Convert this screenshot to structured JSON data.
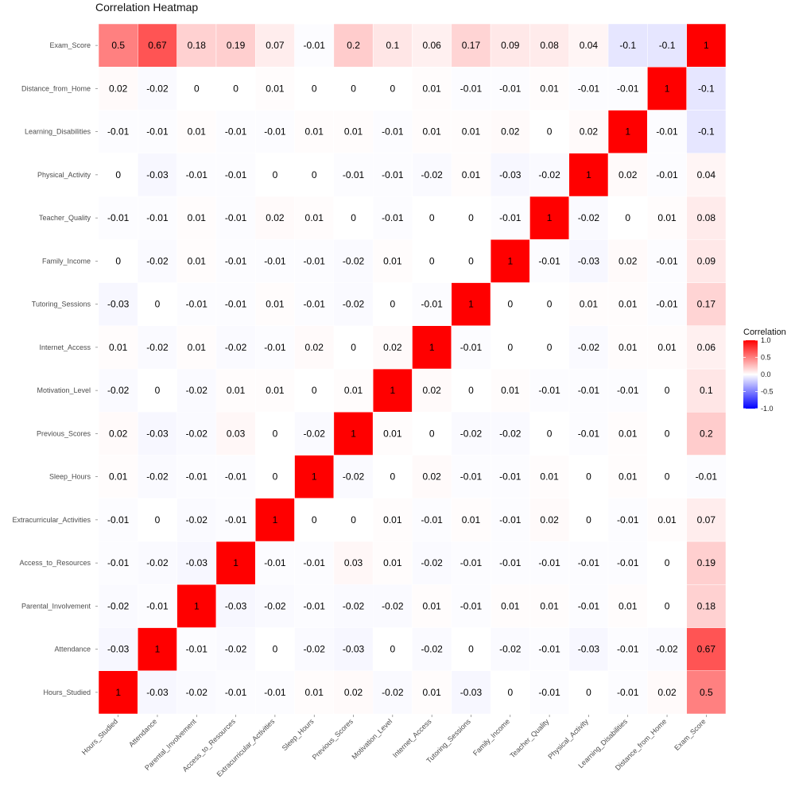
{
  "chart_data": {
    "type": "heatmap",
    "title": "Correlation Heatmap",
    "xlabel": "",
    "ylabel": "",
    "variables": [
      "Hours_Studied",
      "Attendance",
      "Parental_Involvement",
      "Access_to_Resources",
      "Extracurricular_Activities",
      "Sleep_Hours",
      "Previous_Scores",
      "Motivation_Level",
      "Internet_Access",
      "Tutoring_Sessions",
      "Family_Income",
      "Teacher_Quality",
      "Physical_Activity",
      "Learning_Disabilities",
      "Distance_from_Home",
      "Exam_Score"
    ],
    "matrix": [
      [
        1,
        -0.03,
        -0.02,
        -0.01,
        -0.01,
        0.01,
        0.02,
        -0.02,
        0.01,
        -0.03,
        0,
        -0.01,
        0,
        -0.01,
        0.02,
        0.5
      ],
      [
        -0.03,
        1,
        -0.01,
        -0.02,
        0,
        -0.02,
        -0.03,
        0,
        -0.02,
        0,
        -0.02,
        -0.01,
        -0.03,
        -0.01,
        -0.02,
        0.67
      ],
      [
        -0.02,
        -0.01,
        1,
        -0.03,
        -0.02,
        -0.01,
        -0.02,
        -0.02,
        0.01,
        -0.01,
        0.01,
        0.01,
        -0.01,
        0.01,
        0,
        0.18
      ],
      [
        -0.01,
        -0.02,
        -0.03,
        1,
        -0.01,
        -0.01,
        0.03,
        0.01,
        -0.02,
        -0.01,
        -0.01,
        -0.01,
        -0.01,
        -0.01,
        0,
        0.19
      ],
      [
        -0.01,
        0,
        -0.02,
        -0.01,
        1,
        0,
        0,
        0.01,
        -0.01,
        0.01,
        -0.01,
        0.02,
        0,
        -0.01,
        0.01,
        0.07
      ],
      [
        0.01,
        -0.02,
        -0.01,
        -0.01,
        0,
        1,
        -0.02,
        0,
        0.02,
        -0.01,
        -0.01,
        0.01,
        0,
        0.01,
        0,
        -0.01
      ],
      [
        0.02,
        -0.03,
        -0.02,
        0.03,
        0,
        -0.02,
        1,
        0.01,
        0,
        -0.02,
        -0.02,
        0,
        -0.01,
        0.01,
        0,
        0.2
      ],
      [
        -0.02,
        0,
        -0.02,
        0.01,
        0.01,
        0,
        0.01,
        1,
        0.02,
        0,
        0.01,
        -0.01,
        -0.01,
        -0.01,
        0,
        0.1
      ],
      [
        0.01,
        -0.02,
        0.01,
        -0.02,
        -0.01,
        0.02,
        0,
        0.02,
        1,
        -0.01,
        0,
        0,
        -0.02,
        0.01,
        0.01,
        0.06
      ],
      [
        -0.03,
        0,
        -0.01,
        -0.01,
        0.01,
        -0.01,
        -0.02,
        0,
        -0.01,
        1,
        0,
        0,
        0.01,
        0.01,
        -0.01,
        0.17
      ],
      [
        0,
        -0.02,
        0.01,
        -0.01,
        -0.01,
        -0.01,
        -0.02,
        0.01,
        0,
        0,
        1,
        -0.01,
        -0.03,
        0.02,
        -0.01,
        0.09
      ],
      [
        -0.01,
        -0.01,
        0.01,
        -0.01,
        0.02,
        0.01,
        0,
        -0.01,
        0,
        0,
        -0.01,
        1,
        -0.02,
        0,
        0.01,
        0.08
      ],
      [
        0,
        -0.03,
        -0.01,
        -0.01,
        0,
        0,
        -0.01,
        -0.01,
        -0.02,
        0.01,
        -0.03,
        -0.02,
        1,
        0.02,
        -0.01,
        0.04
      ],
      [
        -0.01,
        -0.01,
        0.01,
        -0.01,
        -0.01,
        0.01,
        0.01,
        -0.01,
        0.01,
        0.01,
        0.02,
        0,
        0.02,
        1,
        -0.01,
        -0.1
      ],
      [
        0.02,
        -0.02,
        0,
        0,
        0.01,
        0,
        0,
        0,
        0.01,
        -0.01,
        -0.01,
        0.01,
        -0.01,
        -0.01,
        1,
        -0.1
      ],
      [
        0.5,
        0.67,
        0.18,
        0.19,
        0.07,
        -0.01,
        0.2,
        0.1,
        0.06,
        0.17,
        0.09,
        0.08,
        0.04,
        -0.1,
        -0.1,
        1
      ]
    ],
    "legend": {
      "title": "Correlation",
      "ticks": [
        "1.0",
        "0.5",
        "0.0",
        "-0.5",
        "-1.0"
      ],
      "range": [
        -1,
        1
      ],
      "colors": {
        "low": "#0000ff",
        "mid": "#ffffff",
        "high": "#ff0000"
      },
      "placement": "right"
    },
    "grid": false
  }
}
